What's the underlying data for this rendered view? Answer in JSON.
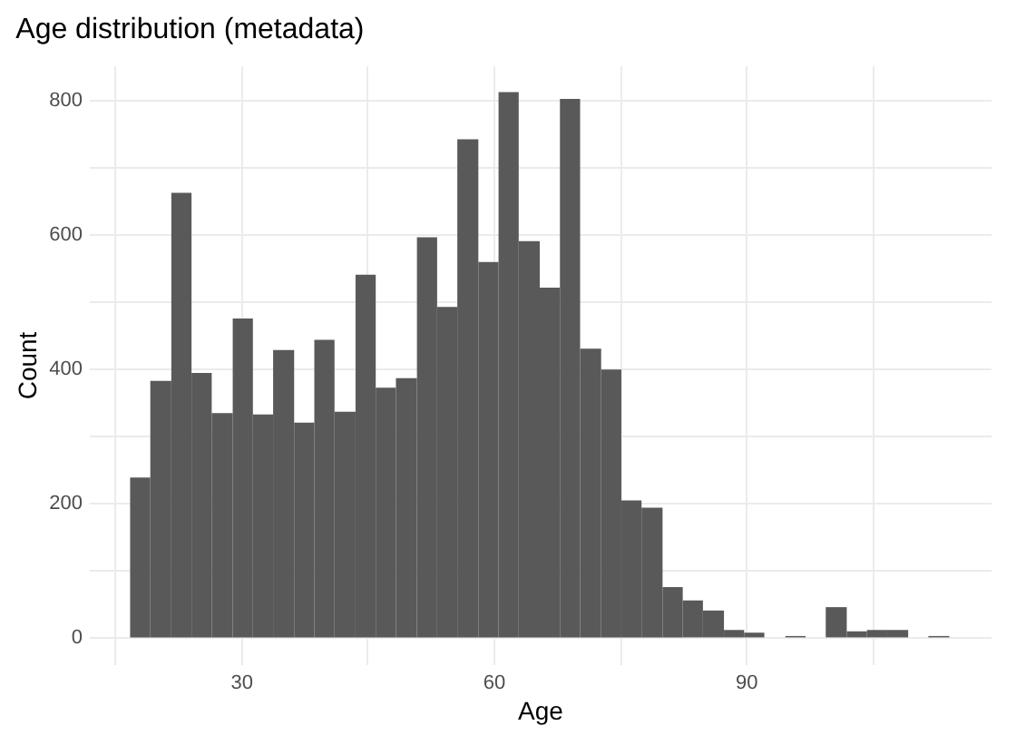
{
  "chart_data": {
    "type": "histogram",
    "title": "Age distribution (metadata)",
    "xlabel": "Age",
    "ylabel": "Count",
    "color": "#595959",
    "bins": [
      16.8,
      19.2,
      21.7,
      24.1,
      26.5,
      29.0,
      31.4,
      33.8,
      36.3,
      38.7,
      41.1,
      43.6,
      46.0,
      48.4,
      50.9,
      53.3,
      55.7,
      58.2,
      60.6,
      63.0,
      65.5,
      67.9,
      70.3,
      72.8,
      75.2,
      77.6,
      80.1,
      82.5,
      84.9,
      87.4,
      89.8,
      92.2,
      94.7,
      97.1,
      99.5,
      102.0,
      104.4,
      106.8,
      109.3,
      111.7,
      114.2
    ],
    "values": [
      238,
      382,
      662,
      394,
      334,
      475,
      332,
      428,
      320,
      443,
      336,
      540,
      372,
      386,
      596,
      492,
      742,
      559,
      812,
      590,
      521,
      802,
      430,
      399,
      204,
      193,
      75,
      55,
      40,
      11,
      7,
      0,
      2,
      0,
      45,
      9,
      11,
      11,
      0,
      2
    ],
    "xlim": [
      11.9,
      119.1
    ],
    "ylim": [
      -40,
      852
    ],
    "xticks": [
      {
        "value": 15,
        "label": null
      },
      30,
      {
        "value": 45,
        "label": null
      },
      60,
      {
        "value": 75,
        "label": null
      },
      90,
      {
        "value": 105,
        "label": null
      }
    ],
    "yticks": [
      0,
      {
        "value": 100,
        "label": null
      },
      200,
      {
        "value": 300,
        "label": null
      },
      400,
      {
        "value": 500,
        "label": null
      },
      600,
      {
        "value": 700,
        "label": null
      },
      800
    ],
    "grid": true
  }
}
